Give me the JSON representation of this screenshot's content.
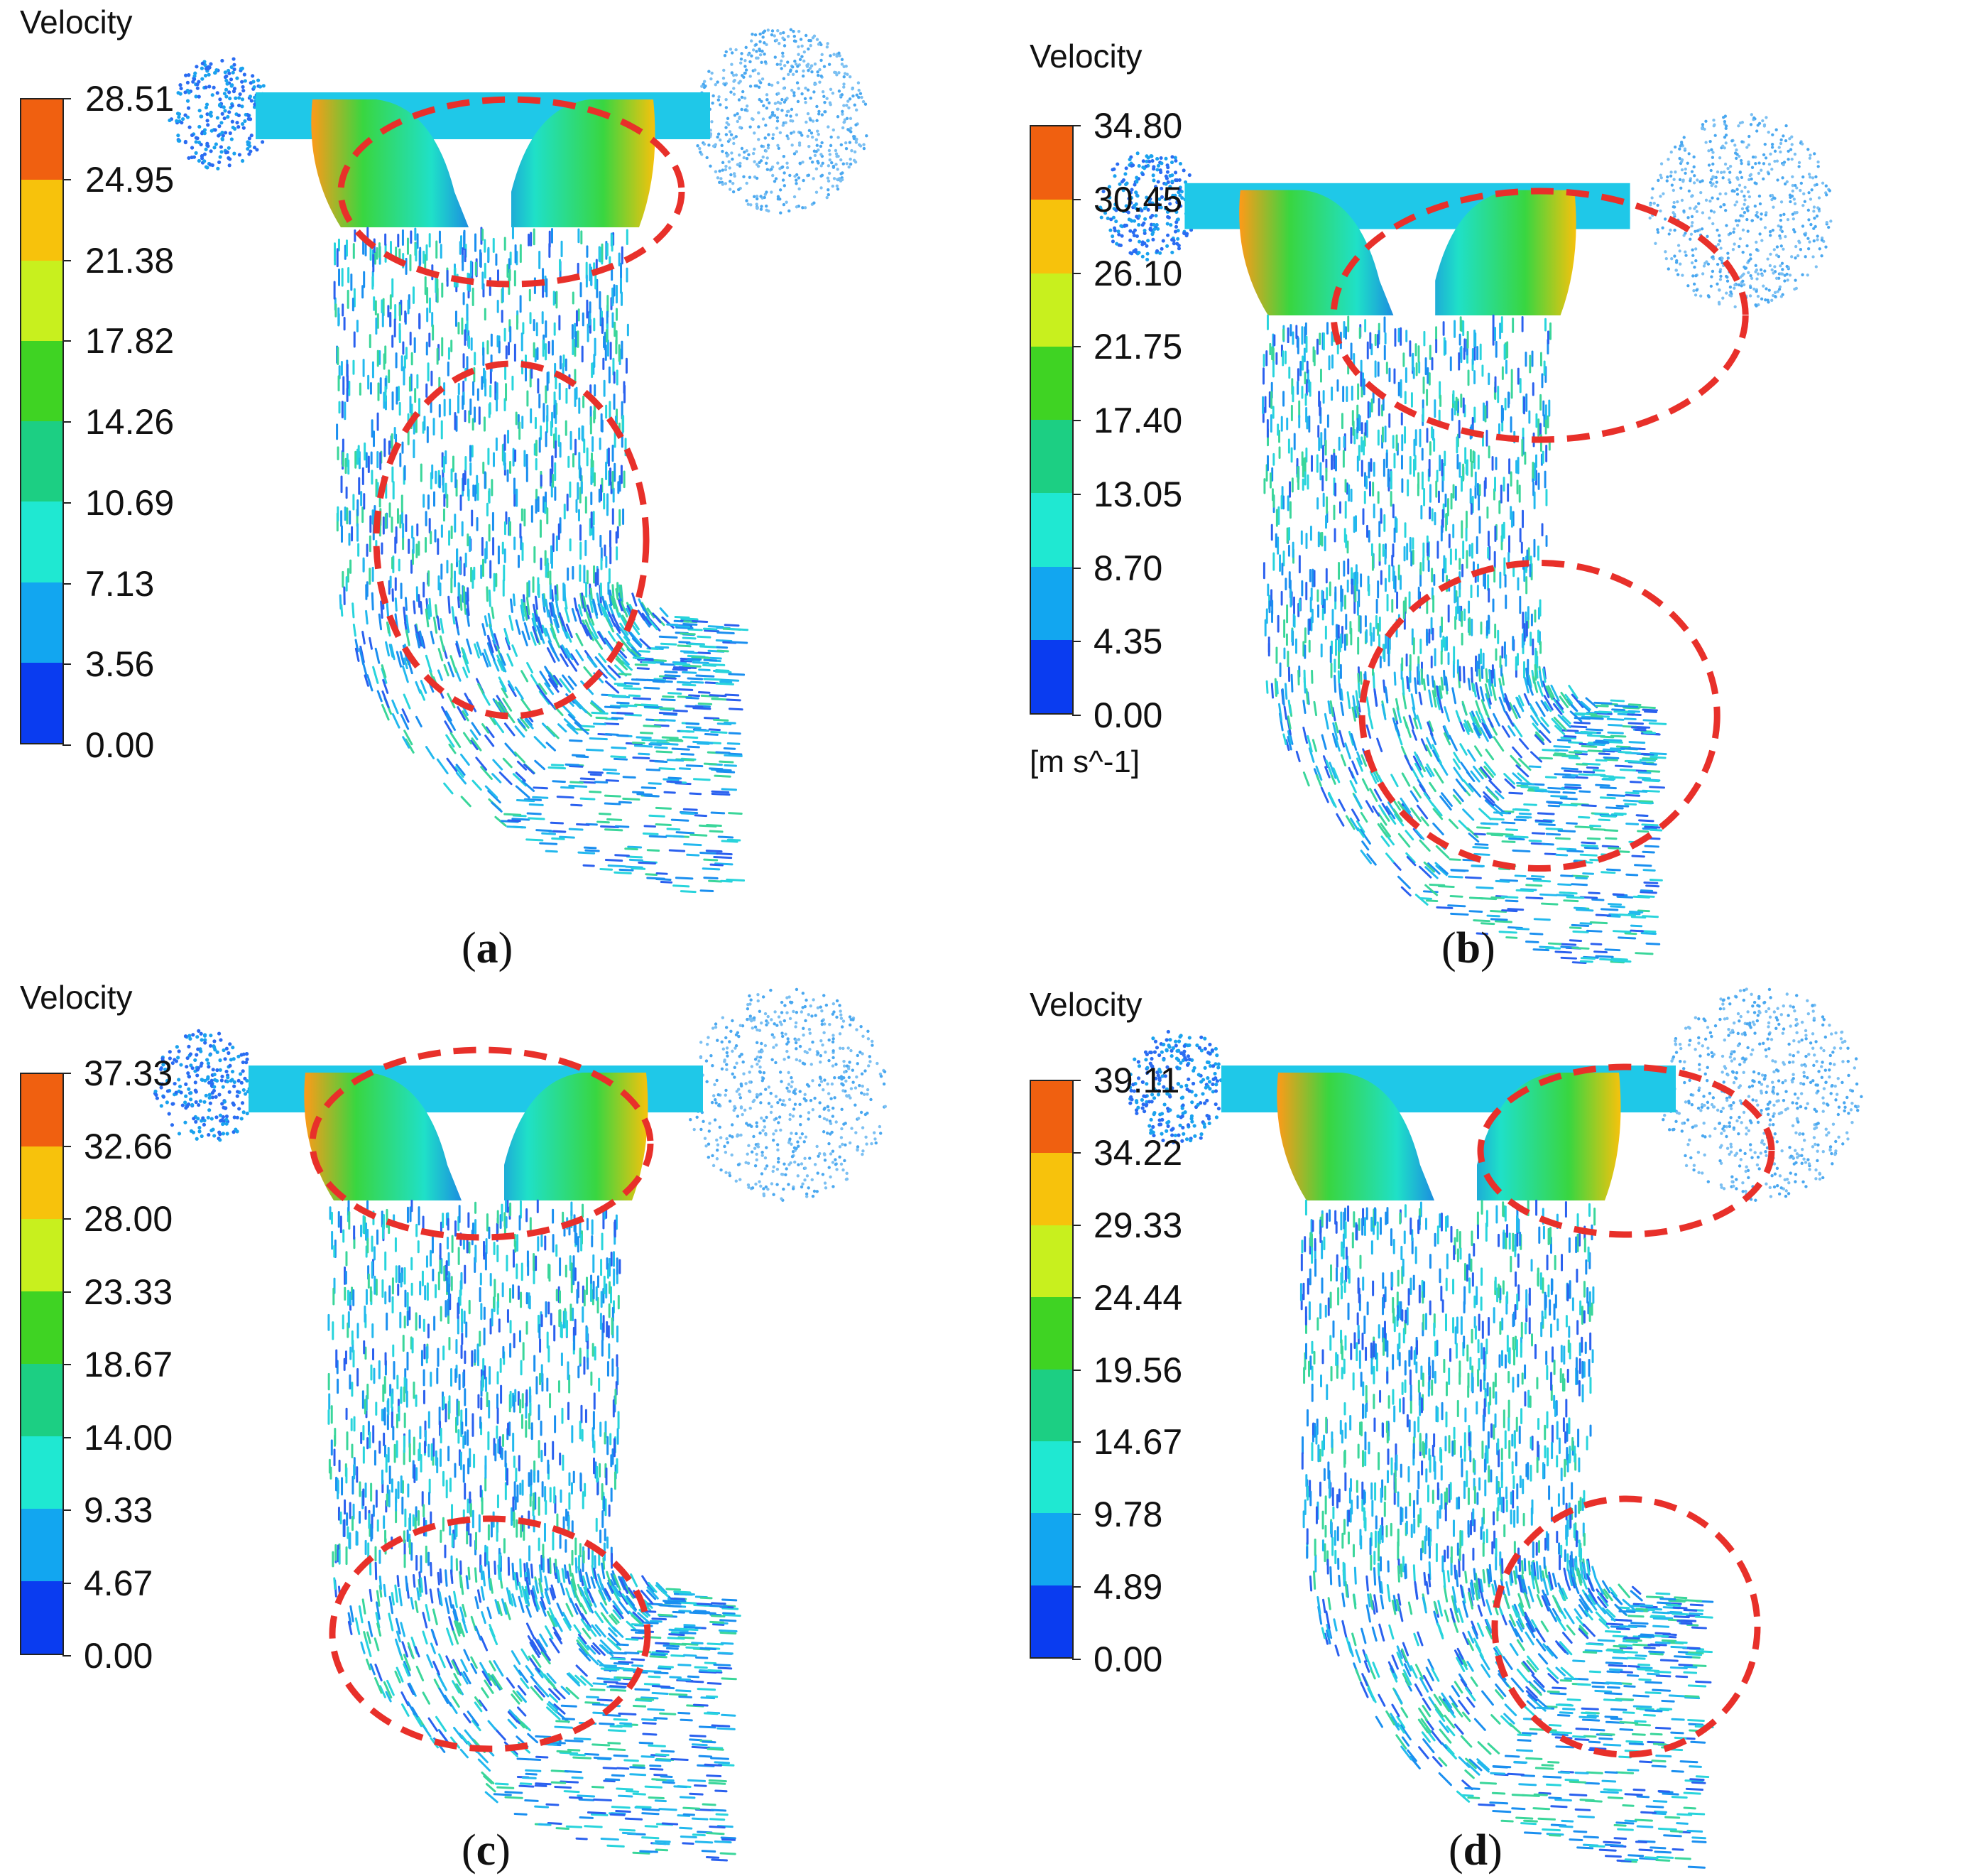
{
  "colors": {
    "band_colors_bottom_to_top": [
      "#0a3cf0",
      "#12a6f0",
      "#1fe8d2",
      "#1ccf83",
      "#3fd323",
      "#c8f01e",
      "#f7c20c",
      "#f06010"
    ],
    "highlight_ellipse": "#e8302a"
  },
  "panels": [
    {
      "id": "a",
      "legend_title": "Velocity",
      "ticks": [
        "28.51",
        "24.95",
        "21.38",
        "17.82",
        "14.26",
        "10.69",
        "7.13",
        "3.56",
        "0.00"
      ],
      "unit": "",
      "caption_open": "(",
      "caption_letter": "a",
      "caption_close": ")"
    },
    {
      "id": "b",
      "legend_title": "Velocity",
      "ticks": [
        "34.80",
        "30.45",
        "26.10",
        "21.75",
        "17.40",
        "13.05",
        "8.70",
        "4.35",
        "0.00"
      ],
      "unit": "[m s^-1]",
      "caption_open": "(",
      "caption_letter": "b",
      "caption_close": ")"
    },
    {
      "id": "c",
      "legend_title": "Velocity",
      "ticks": [
        "37.33",
        "32.66",
        "28.00",
        "23.33",
        "18.67",
        "14.00",
        "9.33",
        "4.67",
        "0.00"
      ],
      "unit": "",
      "caption_open": "(",
      "caption_letter": "c",
      "caption_close": ")"
    },
    {
      "id": "d",
      "legend_title": "Velocity",
      "ticks": [
        "39.11",
        "34.22",
        "29.33",
        "24.44",
        "19.56",
        "14.67",
        "9.78",
        "4.89",
        "0.00"
      ],
      "unit": "",
      "caption_open": "(",
      "caption_letter": "d",
      "caption_close": ")"
    }
  ]
}
